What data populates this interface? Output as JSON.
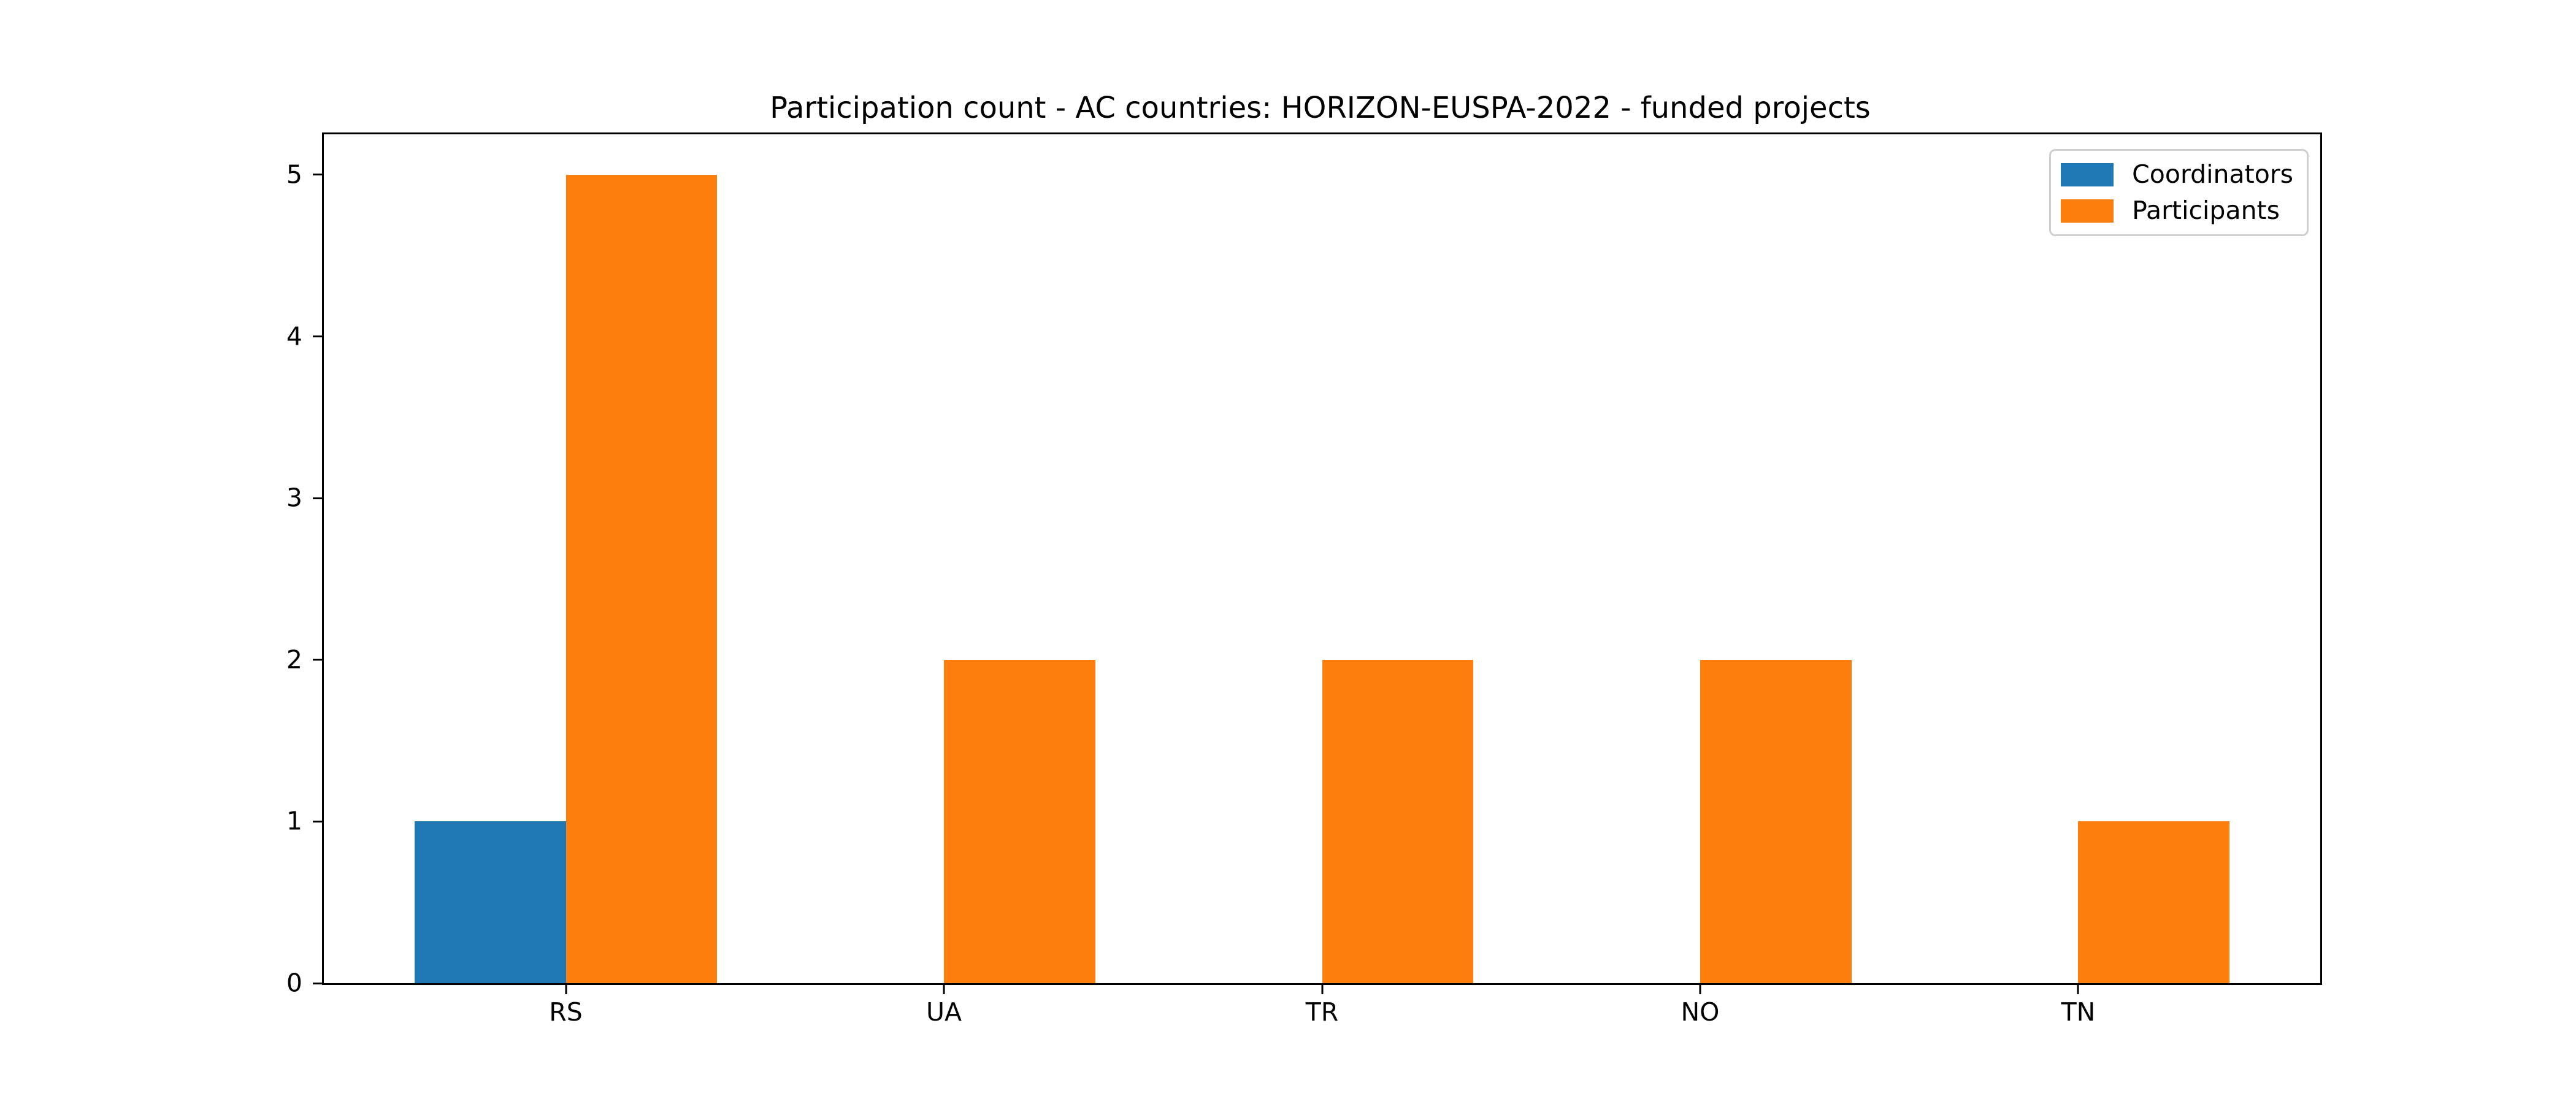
{
  "chart_data": {
    "type": "bar",
    "title": "Participation count - AC countries: HORIZON-EUSPA-2022 - funded projects",
    "categories": [
      "RS",
      "UA",
      "TR",
      "NO",
      "TN"
    ],
    "series": [
      {
        "name": "Coordinators",
        "color": "#1f77b4",
        "values": [
          1,
          0,
          0,
          0,
          0
        ]
      },
      {
        "name": "Participants",
        "color": "#ff7f0e",
        "values": [
          5,
          2,
          2,
          2,
          1
        ]
      }
    ],
    "bar_width": 0.4,
    "yticks": [
      0,
      1,
      2,
      3,
      4,
      5
    ],
    "ylim": [
      0,
      5.25
    ],
    "xlim": [
      -0.64,
      4.64
    ],
    "xlabel": "",
    "ylabel": "",
    "grid": false,
    "legend_position": "upper right",
    "background_color": "#ffffff",
    "spine_color": "#000000",
    "legend_border_color": "#cfcfcf"
  }
}
